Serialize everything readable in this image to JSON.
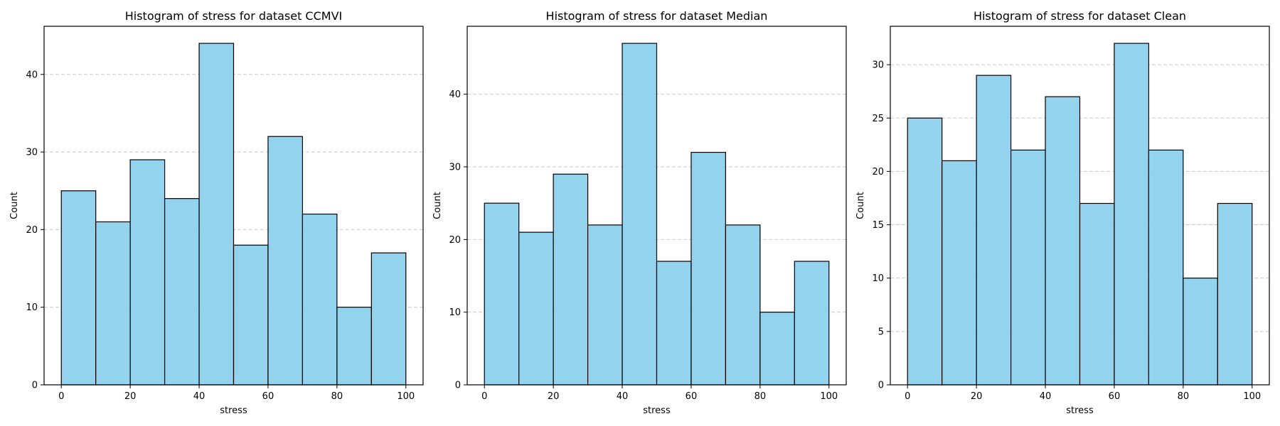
{
  "chart_data": [
    {
      "type": "bar",
      "title": "Histogram of stress for dataset CCMVI",
      "xlabel": "stress",
      "ylabel": "Count",
      "bin_edges": [
        0,
        10,
        20,
        30,
        40,
        50,
        60,
        70,
        80,
        90,
        100
      ],
      "values": [
        25,
        21,
        29,
        24,
        44,
        18,
        32,
        22,
        10,
        17
      ],
      "xlim": [
        -5,
        105
      ],
      "ylim": [
        0,
        46.2
      ],
      "xticks": [
        0,
        20,
        40,
        60,
        80,
        100
      ],
      "yticks": [
        0,
        10,
        20,
        30,
        40
      ],
      "grid": "y-dashed",
      "bar_color": "#87ceeb",
      "edge_color": "#000000"
    },
    {
      "type": "bar",
      "title": "Histogram of stress for dataset Median",
      "xlabel": "stress",
      "ylabel": "Count",
      "bin_edges": [
        0,
        10,
        20,
        30,
        40,
        50,
        60,
        70,
        80,
        90,
        100
      ],
      "values": [
        25,
        21,
        29,
        22,
        47,
        17,
        32,
        22,
        10,
        17
      ],
      "xlim": [
        -5,
        105
      ],
      "ylim": [
        0,
        49.35
      ],
      "xticks": [
        0,
        20,
        40,
        60,
        80,
        100
      ],
      "yticks": [
        0,
        10,
        20,
        30,
        40
      ],
      "grid": "y-dashed",
      "bar_color": "#87ceeb",
      "edge_color": "#000000"
    },
    {
      "type": "bar",
      "title": "Histogram of stress for dataset Clean",
      "xlabel": "stress",
      "ylabel": "Count",
      "bin_edges": [
        0,
        10,
        20,
        30,
        40,
        50,
        60,
        70,
        80,
        90,
        100
      ],
      "values": [
        25,
        21,
        29,
        22,
        27,
        17,
        32,
        22,
        10,
        17
      ],
      "xlim": [
        -5,
        105
      ],
      "ylim": [
        0,
        33.6
      ],
      "xticks": [
        0,
        20,
        40,
        60,
        80,
        100
      ],
      "yticks": [
        0,
        5,
        10,
        15,
        20,
        25,
        30
      ],
      "grid": "y-dashed",
      "bar_color": "#87ceeb",
      "edge_color": "#000000"
    }
  ]
}
